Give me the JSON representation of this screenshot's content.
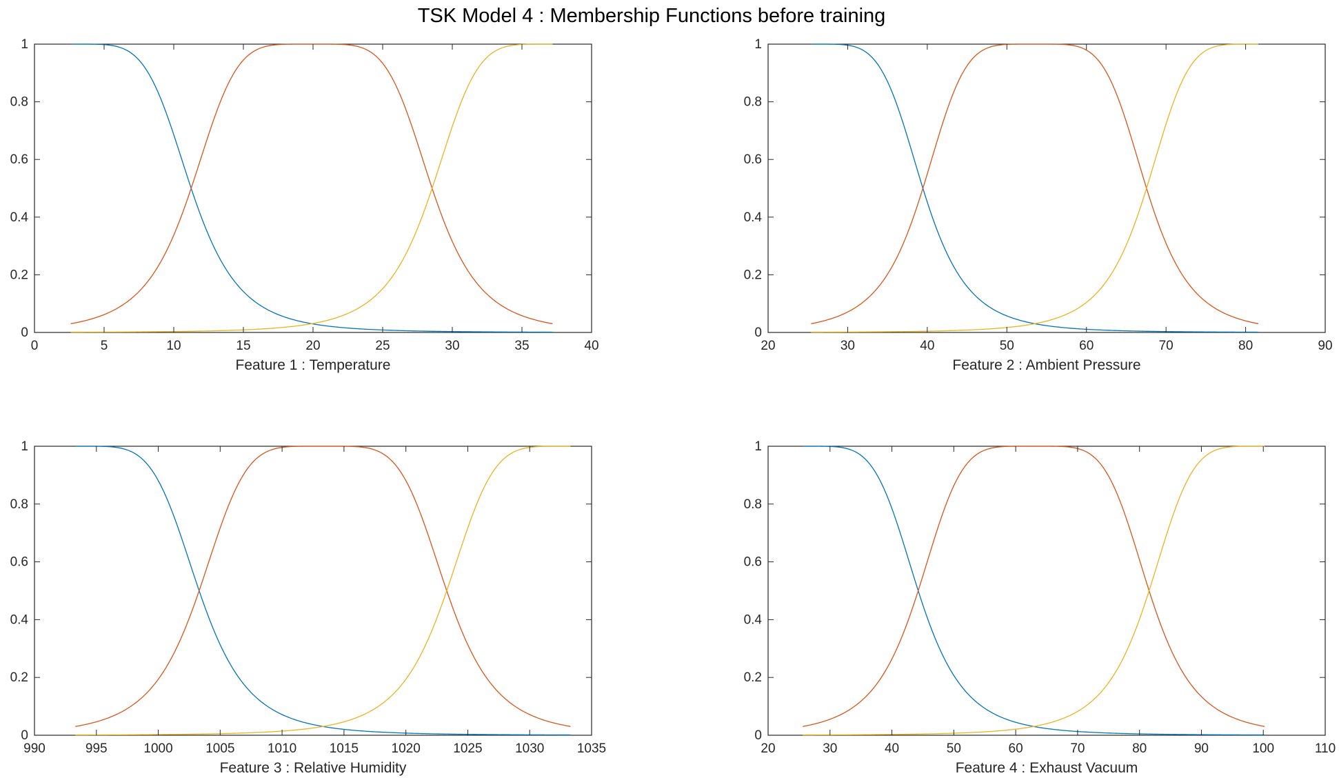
{
  "figure": {
    "title": "TSK Model 4 : Membership Functions before training"
  },
  "colors": {
    "series": [
      "#0072BD",
      "#D95319",
      "#EDB120"
    ],
    "axis": "#262626"
  },
  "chart_data": [
    {
      "type": "line",
      "xlabel": "Feature 1  :  Temperature",
      "ylabel": "",
      "xlim": [
        0,
        40
      ],
      "ylim": [
        0,
        1
      ],
      "xticks": [
        "0",
        "5",
        "10",
        "15",
        "20",
        "25",
        "30",
        "35",
        "40"
      ],
      "yticks": [
        "0",
        "0.2",
        "0.4",
        "0.6",
        "0.8",
        "1"
      ],
      "grid": false,
      "legend": "none",
      "membership_functions": {
        "kind": "generalized bell",
        "domain": [
          2.6,
          37.2
        ],
        "series": [
          {
            "a": 8.65,
            "b": 2.5,
            "c": 2.6
          },
          {
            "a": 8.65,
            "b": 2.5,
            "c": 19.9
          },
          {
            "a": 8.65,
            "b": 2.5,
            "c": 37.2
          }
        ]
      }
    },
    {
      "type": "line",
      "xlabel": "Feature 2  :  Ambient Pressure",
      "ylabel": "",
      "xlim": [
        20,
        90
      ],
      "ylim": [
        0,
        1
      ],
      "xticks": [
        "20",
        "30",
        "40",
        "50",
        "60",
        "70",
        "80",
        "90"
      ],
      "yticks": [
        "0",
        "0.2",
        "0.4",
        "0.6",
        "0.8",
        "1"
      ],
      "grid": false,
      "legend": "none",
      "membership_functions": {
        "kind": "generalized bell",
        "domain": [
          25.4,
          81.6
        ],
        "series": [
          {
            "a": 14.05,
            "b": 2.5,
            "c": 25.4
          },
          {
            "a": 14.05,
            "b": 2.5,
            "c": 53.5
          },
          {
            "a": 14.05,
            "b": 2.5,
            "c": 81.6
          }
        ]
      }
    },
    {
      "type": "line",
      "xlabel": "Feature 3  :  Relative Humidity",
      "ylabel": "",
      "xlim": [
        990,
        1035
      ],
      "ylim": [
        0,
        1
      ],
      "xticks": [
        "990",
        "995",
        "1000",
        "1005",
        "1010",
        "1015",
        "1020",
        "1025",
        "1030",
        "1035"
      ],
      "yticks": [
        "0",
        "0.2",
        "0.4",
        "0.6",
        "0.8",
        "1"
      ],
      "grid": false,
      "legend": "none",
      "membership_functions": {
        "kind": "generalized bell",
        "domain": [
          993.3,
          1033.3
        ],
        "series": [
          {
            "a": 10.0,
            "b": 2.5,
            "c": 993.3
          },
          {
            "a": 10.0,
            "b": 2.5,
            "c": 1013.3
          },
          {
            "a": 10.0,
            "b": 2.5,
            "c": 1033.3
          }
        ]
      }
    },
    {
      "type": "line",
      "xlabel": "Feature 4  :  Exhaust Vacuum",
      "ylabel": "",
      "xlim": [
        20,
        110
      ],
      "ylim": [
        0,
        1
      ],
      "xticks": [
        "20",
        "30",
        "40",
        "50",
        "60",
        "70",
        "80",
        "90",
        "100",
        "110"
      ],
      "yticks": [
        "0",
        "0.2",
        "0.4",
        "0.6",
        "0.8",
        "1"
      ],
      "grid": false,
      "legend": "none",
      "membership_functions": {
        "kind": "generalized bell",
        "domain": [
          25.6,
          100.2
        ],
        "series": [
          {
            "a": 18.65,
            "b": 2.5,
            "c": 25.6
          },
          {
            "a": 18.65,
            "b": 2.5,
            "c": 62.9
          },
          {
            "a": 18.65,
            "b": 2.5,
            "c": 100.2
          }
        ]
      }
    }
  ]
}
